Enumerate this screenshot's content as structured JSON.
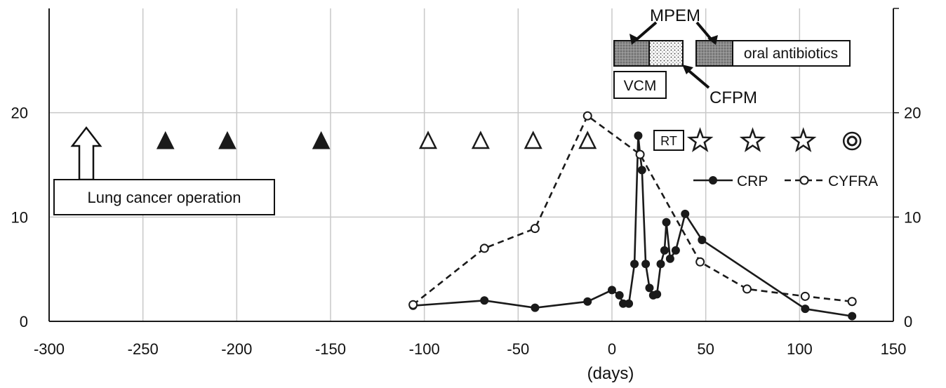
{
  "chart_data": {
    "type": "line",
    "xlabel": "(days)",
    "x_ticks": [
      -300,
      -250,
      -200,
      -150,
      -100,
      -50,
      0,
      50,
      100,
      150
    ],
    "y_ticks": [
      0,
      10,
      20
    ],
    "xlim": [
      -300,
      150
    ],
    "ylim_left": [
      0,
      30
    ],
    "ylim_right": [
      0,
      30
    ],
    "grid": true,
    "legend_position": "right",
    "series": [
      {
        "name": "CRP",
        "style": "solid-filled",
        "x": [
          -106,
          -68,
          -41,
          -13,
          0,
          4,
          6,
          9,
          12,
          14,
          15,
          16,
          18,
          20,
          22,
          24,
          26,
          28,
          29,
          31,
          34,
          39,
          48,
          103,
          128
        ],
        "y": [
          1.5,
          2.0,
          1.3,
          1.9,
          3.0,
          2.5,
          1.7,
          1.7,
          5.5,
          17.8,
          16.0,
          14.5,
          5.5,
          3.2,
          2.5,
          2.6,
          5.5,
          6.8,
          9.5,
          6.0,
          6.8,
          10.3,
          7.8,
          1.2,
          0.5
        ]
      },
      {
        "name": "CYFRA",
        "style": "dashed-open",
        "x": [
          -106,
          -68,
          -41,
          -13,
          15,
          47,
          72,
          103,
          128
        ],
        "y": [
          1.6,
          7.0,
          8.9,
          19.7,
          16.0,
          5.7,
          3.1,
          2.4,
          1.9
        ]
      }
    ],
    "event_markers": [
      {
        "type": "filled-triangle",
        "x": [
          -238,
          -205,
          -155
        ]
      },
      {
        "type": "open-triangle",
        "x": [
          -98,
          -70,
          -42,
          -13
        ]
      },
      {
        "type": "star",
        "x": [
          47,
          75,
          102
        ]
      },
      {
        "type": "bullseye",
        "x": [
          128
        ]
      }
    ],
    "annotations": {
      "operation": "Lung cancer operation",
      "rt": "RT",
      "mpem": "MPEM",
      "cfpm": "CFPM",
      "vcm": "VCM",
      "oral": "oral antibiotics"
    },
    "colors": {
      "line": "#1a1a1a",
      "grid": "#c8c8c8",
      "drug_box": "#7f7f7f"
    }
  }
}
